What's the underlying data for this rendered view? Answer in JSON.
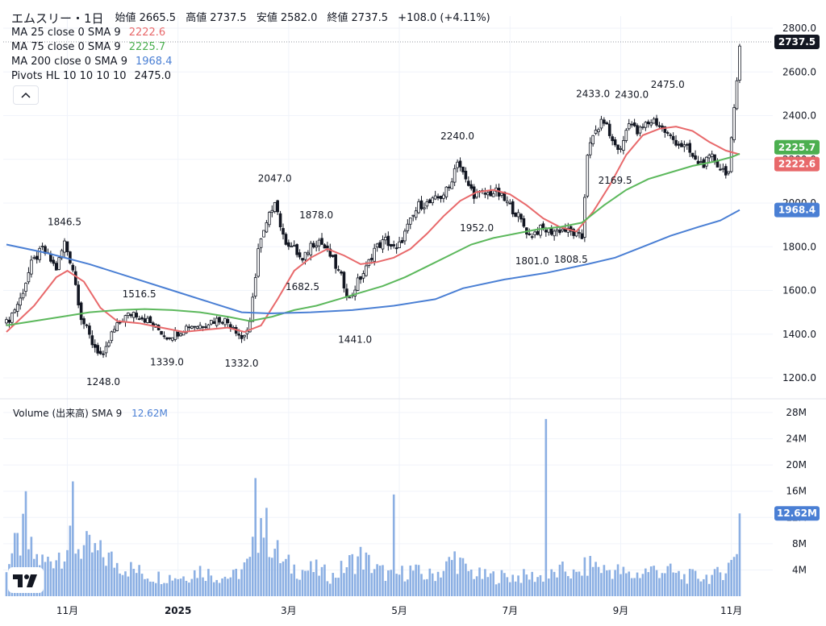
{
  "legend": {
    "title": "エムスリー・1日",
    "ohlc": {
      "open_label": "始値",
      "open": "2665.5",
      "high_label": "高値",
      "high": "2737.5",
      "low_label": "安値",
      "low": "2582.0",
      "close_label": "終値",
      "close": "2737.5",
      "change": "+108.0 (+4.11%)"
    },
    "indicators": [
      {
        "label": "MA 25 close 0 SMA 9",
        "value": "2222.6",
        "color": "#e8696b"
      },
      {
        "label": "MA 75 close 0 SMA 9",
        "value": "2225.7",
        "color": "#5cb85c"
      },
      {
        "label": "MA 200 close 0 SMA 9",
        "value": "1968.4",
        "color": "#4a7fd4"
      },
      {
        "label": "Pivots HL 10 10 10 10",
        "value": "2475.0",
        "color": "#131722"
      }
    ],
    "collapse_icon": "chevron-up-icon"
  },
  "volume_legend": {
    "label": "Volume (出来高) SMA 9",
    "value": "12.62M",
    "color": "#4a7fd4"
  },
  "logo": {
    "text": "TV",
    "icon": "tradingview-logo-icon"
  },
  "chart_data": {
    "type": "candlestick",
    "price_axis": {
      "ticks": [
        "1200.0",
        "1400.0",
        "1600.0",
        "1800.0",
        "2000.0",
        "2200.0",
        "2400.0",
        "2600.0",
        "2800.0"
      ],
      "range": [
        1150,
        2850
      ]
    },
    "volume_axis": {
      "ticks": [
        "4M",
        "8M",
        "12M",
        "16M",
        "20M",
        "24M",
        "28M"
      ],
      "range": [
        0,
        28
      ]
    },
    "x_axis": {
      "ticks": [
        "11月",
        "2025",
        "3月",
        "5月",
        "7月",
        "9月",
        "11月"
      ],
      "tick_day_index": [
        22,
        62,
        102,
        142,
        182,
        222,
        262
      ]
    },
    "price_badges": [
      {
        "value": "2737.5",
        "bg": "#131722"
      },
      {
        "value": "2225.7",
        "bg": "#4caf50"
      },
      {
        "value": "2222.6",
        "bg": "#e8696b"
      },
      {
        "value": "1968.4",
        "bg": "#4a7fd4"
      }
    ],
    "volume_badge": {
      "value": "12.62M",
      "bg": "#4a7fd4"
    },
    "pivots": [
      {
        "text": "1846.5",
        "day": 21,
        "price": 1846.5,
        "kind": "high"
      },
      {
        "text": "1248.0",
        "day": 35,
        "price": 1248.0,
        "kind": "low"
      },
      {
        "text": "1516.5",
        "day": 48,
        "price": 1516.5,
        "kind": "high"
      },
      {
        "text": "1339.0",
        "day": 58,
        "price": 1339.0,
        "kind": "low"
      },
      {
        "text": "1332.0",
        "day": 85,
        "price": 1332.0,
        "kind": "low"
      },
      {
        "text": "2047.0",
        "day": 97,
        "price": 2047.0,
        "kind": "high"
      },
      {
        "text": "1682.5",
        "day": 107,
        "price": 1682.5,
        "kind": "low"
      },
      {
        "text": "1878.0",
        "day": 112,
        "price": 1878.0,
        "kind": "high"
      },
      {
        "text": "1441.0",
        "day": 126,
        "price": 1441.0,
        "kind": "low"
      },
      {
        "text": "2240.0",
        "day": 163,
        "price": 2240.0,
        "kind": "high"
      },
      {
        "text": "1952.0",
        "day": 170,
        "price": 1952.0,
        "kind": "low"
      },
      {
        "text": "1801.0",
        "day": 190,
        "price": 1801.0,
        "kind": "low"
      },
      {
        "text": "1808.5",
        "day": 204,
        "price": 1808.5,
        "kind": "low"
      },
      {
        "text": "2169.5",
        "day": 220,
        "price": 2169.5,
        "kind": "low"
      },
      {
        "text": "2433.0",
        "day": 212,
        "price": 2433.0,
        "kind": "high"
      },
      {
        "text": "2430.0",
        "day": 226,
        "price": 2430.0,
        "kind": "high"
      },
      {
        "text": "2475.0",
        "day": 239,
        "price": 2475.0,
        "kind": "high"
      }
    ],
    "close_anchors": [
      [
        0,
        1450
      ],
      [
        5,
        1560
      ],
      [
        9,
        1720
      ],
      [
        13,
        1790
      ],
      [
        18,
        1700
      ],
      [
        21,
        1820
      ],
      [
        24,
        1700
      ],
      [
        27,
        1480
      ],
      [
        31,
        1360
      ],
      [
        35,
        1290
      ],
      [
        38,
        1400
      ],
      [
        42,
        1470
      ],
      [
        46,
        1500
      ],
      [
        50,
        1470
      ],
      [
        54,
        1430
      ],
      [
        58,
        1390
      ],
      [
        62,
        1410
      ],
      [
        66,
        1440
      ],
      [
        70,
        1440
      ],
      [
        74,
        1460
      ],
      [
        78,
        1470
      ],
      [
        82,
        1440
      ],
      [
        85,
        1380
      ],
      [
        88,
        1440
      ],
      [
        91,
        1790
      ],
      [
        94,
        1900
      ],
      [
        97,
        2020
      ],
      [
        100,
        1840
      ],
      [
        104,
        1790
      ],
      [
        107,
        1730
      ],
      [
        110,
        1810
      ],
      [
        113,
        1830
      ],
      [
        117,
        1760
      ],
      [
        121,
        1660
      ],
      [
        124,
        1560
      ],
      [
        127,
        1640
      ],
      [
        130,
        1700
      ],
      [
        133,
        1790
      ],
      [
        137,
        1830
      ],
      [
        141,
        1780
      ],
      [
        145,
        1890
      ],
      [
        149,
        1990
      ],
      [
        153,
        2000
      ],
      [
        157,
        2030
      ],
      [
        160,
        2070
      ],
      [
        163,
        2200
      ],
      [
        166,
        2100
      ],
      [
        169,
        2040
      ],
      [
        173,
        2040
      ],
      [
        177,
        2050
      ],
      [
        181,
        2000
      ],
      [
        185,
        1940
      ],
      [
        189,
        1850
      ],
      [
        193,
        1880
      ],
      [
        197,
        1870
      ],
      [
        201,
        1880
      ],
      [
        205,
        1860
      ],
      [
        208,
        1840
      ],
      [
        210,
        2230
      ],
      [
        213,
        2330
      ],
      [
        216,
        2380
      ],
      [
        219,
        2280
      ],
      [
        222,
        2240
      ],
      [
        225,
        2380
      ],
      [
        228,
        2320
      ],
      [
        231,
        2360
      ],
      [
        234,
        2380
      ],
      [
        237,
        2340
      ],
      [
        240,
        2300
      ],
      [
        243,
        2270
      ],
      [
        246,
        2250
      ],
      [
        249,
        2190
      ],
      [
        252,
        2180
      ],
      [
        255,
        2210
      ],
      [
        258,
        2160
      ],
      [
        261,
        2140
      ],
      [
        264,
        2560
      ],
      [
        265,
        2737.5
      ]
    ],
    "volume_anchors": [
      [
        0,
        5
      ],
      [
        6,
        9
      ],
      [
        10,
        6
      ],
      [
        14,
        5
      ],
      [
        20,
        7
      ],
      [
        24,
        8
      ],
      [
        30,
        7
      ],
      [
        36,
        6
      ],
      [
        40,
        5
      ],
      [
        46,
        4
      ],
      [
        52,
        3
      ],
      [
        58,
        3
      ],
      [
        64,
        3
      ],
      [
        70,
        4
      ],
      [
        76,
        3
      ],
      [
        82,
        3
      ],
      [
        88,
        5
      ],
      [
        92,
        12
      ],
      [
        96,
        8
      ],
      [
        100,
        5
      ],
      [
        106,
        4
      ],
      [
        112,
        4
      ],
      [
        118,
        3
      ],
      [
        124,
        5
      ],
      [
        128,
        6
      ],
      [
        134,
        4
      ],
      [
        140,
        3
      ],
      [
        146,
        4
      ],
      [
        152,
        3
      ],
      [
        158,
        4
      ],
      [
        162,
        6
      ],
      [
        166,
        4
      ],
      [
        172,
        3
      ],
      [
        178,
        3
      ],
      [
        184,
        3
      ],
      [
        190,
        3
      ],
      [
        196,
        3
      ],
      [
        202,
        4
      ],
      [
        206,
        3
      ],
      [
        208,
        4
      ],
      [
        212,
        5
      ],
      [
        216,
        4
      ],
      [
        220,
        4
      ],
      [
        226,
        3
      ],
      [
        232,
        4
      ],
      [
        238,
        4
      ],
      [
        244,
        3
      ],
      [
        250,
        3
      ],
      [
        256,
        3
      ],
      [
        262,
        5
      ],
      [
        264,
        8
      ],
      [
        265,
        12.62
      ]
    ],
    "volume_spikes": [
      [
        7,
        16
      ],
      [
        24,
        17.5
      ],
      [
        90,
        18
      ],
      [
        140,
        15.5
      ],
      [
        195,
        27
      ]
    ],
    "ma_series": [
      {
        "name": "MA 25",
        "color": "#e8696b",
        "points": [
          [
            0,
            1410
          ],
          [
            10,
            1530
          ],
          [
            18,
            1660
          ],
          [
            22,
            1690
          ],
          [
            28,
            1640
          ],
          [
            34,
            1520
          ],
          [
            40,
            1460
          ],
          [
            48,
            1450
          ],
          [
            56,
            1430
          ],
          [
            64,
            1410
          ],
          [
            72,
            1420
          ],
          [
            80,
            1430
          ],
          [
            86,
            1410
          ],
          [
            92,
            1440
          ],
          [
            98,
            1560
          ],
          [
            104,
            1690
          ],
          [
            110,
            1750
          ],
          [
            116,
            1790
          ],
          [
            122,
            1760
          ],
          [
            128,
            1720
          ],
          [
            134,
            1730
          ],
          [
            140,
            1750
          ],
          [
            146,
            1790
          ],
          [
            152,
            1860
          ],
          [
            158,
            1940
          ],
          [
            164,
            2010
          ],
          [
            170,
            2050
          ],
          [
            176,
            2060
          ],
          [
            182,
            2040
          ],
          [
            188,
            1990
          ],
          [
            194,
            1930
          ],
          [
            200,
            1890
          ],
          [
            206,
            1870
          ],
          [
            212,
            1960
          ],
          [
            218,
            2080
          ],
          [
            224,
            2220
          ],
          [
            230,
            2310
          ],
          [
            236,
            2340
          ],
          [
            242,
            2350
          ],
          [
            248,
            2330
          ],
          [
            254,
            2280
          ],
          [
            260,
            2240
          ],
          [
            265,
            2222.6
          ]
        ]
      },
      {
        "name": "MA 75",
        "color": "#5cb85c",
        "points": [
          [
            0,
            1440
          ],
          [
            10,
            1460
          ],
          [
            20,
            1480
          ],
          [
            30,
            1500
          ],
          [
            40,
            1510
          ],
          [
            50,
            1515
          ],
          [
            60,
            1510
          ],
          [
            70,
            1500
          ],
          [
            80,
            1480
          ],
          [
            88,
            1460
          ],
          [
            96,
            1480
          ],
          [
            104,
            1510
          ],
          [
            112,
            1530
          ],
          [
            120,
            1560
          ],
          [
            128,
            1590
          ],
          [
            136,
            1620
          ],
          [
            144,
            1660
          ],
          [
            152,
            1710
          ],
          [
            160,
            1760
          ],
          [
            168,
            1810
          ],
          [
            176,
            1840
          ],
          [
            184,
            1860
          ],
          [
            192,
            1880
          ],
          [
            200,
            1890
          ],
          [
            208,
            1910
          ],
          [
            216,
            1990
          ],
          [
            224,
            2060
          ],
          [
            232,
            2110
          ],
          [
            240,
            2140
          ],
          [
            248,
            2170
          ],
          [
            256,
            2190
          ],
          [
            262,
            2210
          ],
          [
            265,
            2225.7
          ]
        ]
      },
      {
        "name": "MA 200",
        "color": "#4a7fd4",
        "points": [
          [
            0,
            1810
          ],
          [
            15,
            1770
          ],
          [
            30,
            1720
          ],
          [
            45,
            1660
          ],
          [
            60,
            1600
          ],
          [
            75,
            1540
          ],
          [
            85,
            1500
          ],
          [
            95,
            1495
          ],
          [
            110,
            1500
          ],
          [
            125,
            1510
          ],
          [
            140,
            1530
          ],
          [
            155,
            1560
          ],
          [
            165,
            1610
          ],
          [
            180,
            1650
          ],
          [
            195,
            1680
          ],
          [
            210,
            1720
          ],
          [
            220,
            1750
          ],
          [
            230,
            1800
          ],
          [
            240,
            1850
          ],
          [
            250,
            1890
          ],
          [
            258,
            1920
          ],
          [
            265,
            1968.4
          ]
        ]
      }
    ]
  }
}
